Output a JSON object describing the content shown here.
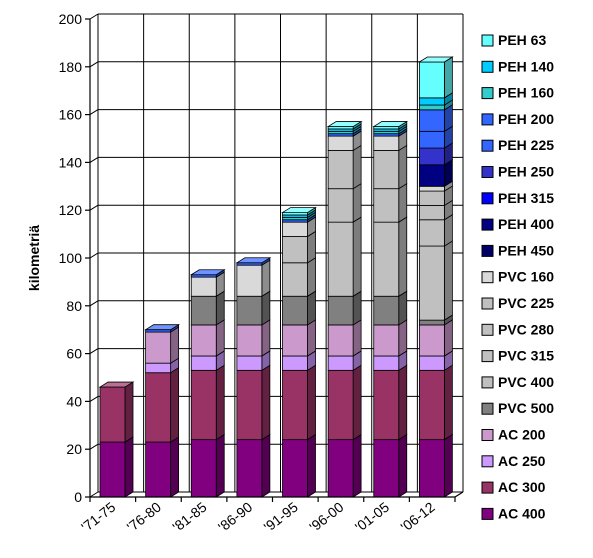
{
  "chart_data": {
    "type": "bar",
    "stacked": true,
    "three_d": true,
    "grid": true,
    "legend_position": "right",
    "ylabel": "kilometriä",
    "ylim": [
      0,
      200
    ],
    "yticks": [
      "0",
      "20",
      "40",
      "60",
      "80",
      "100",
      "120",
      "140",
      "160",
      "180",
      "200"
    ],
    "categories": [
      "'71-75",
      "'76-80",
      "'81-85",
      "'86-90",
      "'91-95",
      "'96-00",
      "'01-05",
      "'06-12"
    ],
    "series": [
      {
        "name": "AC  400",
        "color": "#800080",
        "values": [
          23,
          23,
          24,
          24,
          24,
          24,
          24,
          24
        ]
      },
      {
        "name": "AC  300",
        "color": "#993366",
        "values": [
          23,
          29,
          29,
          29,
          29,
          29,
          29,
          29
        ]
      },
      {
        "name": "AC  250",
        "color": "#CC99FF",
        "values": [
          0,
          4,
          6,
          6,
          6,
          6,
          6,
          6
        ]
      },
      {
        "name": "AC  200",
        "color": "#CC99CC",
        "values": [
          0,
          13,
          13,
          13,
          13,
          13,
          13,
          13
        ]
      },
      {
        "name": "PVC 500",
        "color": "#808080",
        "values": [
          0,
          0,
          12,
          12,
          12,
          12,
          12,
          2
        ]
      },
      {
        "name": "PVC 400",
        "color": "#C0C0C0",
        "values": [
          0,
          0,
          0,
          0,
          0,
          31,
          31,
          31
        ]
      },
      {
        "name": "PVC 315",
        "color": "#C0C0C0",
        "values": [
          0,
          0,
          0,
          0,
          14,
          14,
          14,
          11
        ]
      },
      {
        "name": "PVC 280",
        "color": "#C0C0C0",
        "values": [
          0,
          0,
          0,
          0,
          0,
          16,
          16,
          6
        ]
      },
      {
        "name": "PVC 225",
        "color": "#C0C0C0",
        "values": [
          0,
          0,
          0,
          0,
          11,
          0,
          0,
          6
        ]
      },
      {
        "name": "PVC 160",
        "color": "#D9D9D9",
        "values": [
          0,
          0,
          8,
          13,
          6,
          6,
          6,
          2
        ]
      },
      {
        "name": "PEH 450",
        "color": "#000066",
        "values": [
          0,
          0,
          0,
          0,
          0,
          0,
          0,
          0
        ]
      },
      {
        "name": "PEH 400",
        "color": "#000080",
        "values": [
          0,
          0,
          0,
          0,
          0,
          0,
          0,
          9
        ]
      },
      {
        "name": "PEH 315",
        "color": "#0000FF",
        "values": [
          0,
          0,
          0,
          0,
          0,
          0,
          0,
          0
        ]
      },
      {
        "name": "PEH 250",
        "color": "#3333CC",
        "values": [
          0,
          0,
          0,
          0,
          0,
          0,
          0,
          7
        ]
      },
      {
        "name": "PEH 225",
        "color": "#3366FF",
        "values": [
          0,
          0,
          0,
          0,
          0,
          0,
          0,
          7
        ]
      },
      {
        "name": "PEH 200",
        "color": "#3366FF",
        "values": [
          0,
          1,
          1,
          1,
          1,
          1,
          1,
          9
        ]
      },
      {
        "name": "PEH 160",
        "color": "#33CCCC",
        "values": [
          0,
          0,
          0,
          0,
          1,
          1,
          1,
          2
        ]
      },
      {
        "name": "PEH 140",
        "color": "#00CCFF",
        "values": [
          0,
          0,
          0,
          0,
          1,
          1,
          1,
          3
        ]
      },
      {
        "name": "PEH  63",
        "color": "#66FFFF",
        "values": [
          0,
          0,
          0,
          0,
          1,
          1,
          1,
          15
        ]
      }
    ]
  }
}
